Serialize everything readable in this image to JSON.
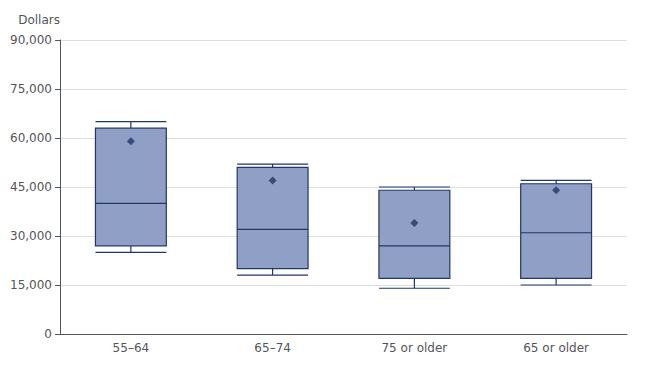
{
  "chart_data": {
    "type": "box",
    "ylabel": "Dollars",
    "categories": [
      "55–64",
      "65–74",
      "75 or older",
      "65 or older"
    ],
    "series": [
      {
        "type": "box",
        "color": "#8f9fc5",
        "values": [
          [
            25000,
            27000,
            40000,
            63000,
            65000
          ],
          [
            18000,
            20000,
            32000,
            51000,
            52000
          ],
          [
            14000,
            17000,
            27000,
            44000,
            45000
          ],
          [
            15000,
            17000,
            31000,
            46000,
            47000
          ]
        ]
      },
      {
        "type": "scatter",
        "marker": "diamond",
        "color": "#1f3868",
        "values": [
          59000,
          47000,
          34000,
          44000
        ]
      }
    ],
    "ylim": [
      0,
      90000
    ],
    "yticks": [
      0,
      {
        "value": 15000,
        "label": "15,000"
      },
      {
        "value": 30000,
        "label": "30,000"
      },
      {
        "value": 45000,
        "label": "45,000"
      },
      {
        "value": 60000,
        "label": "60,000"
      },
      {
        "value": 75000,
        "label": "75,000"
      },
      {
        "value": 90000,
        "label": "90,000"
      }
    ],
    "grid": true
  }
}
